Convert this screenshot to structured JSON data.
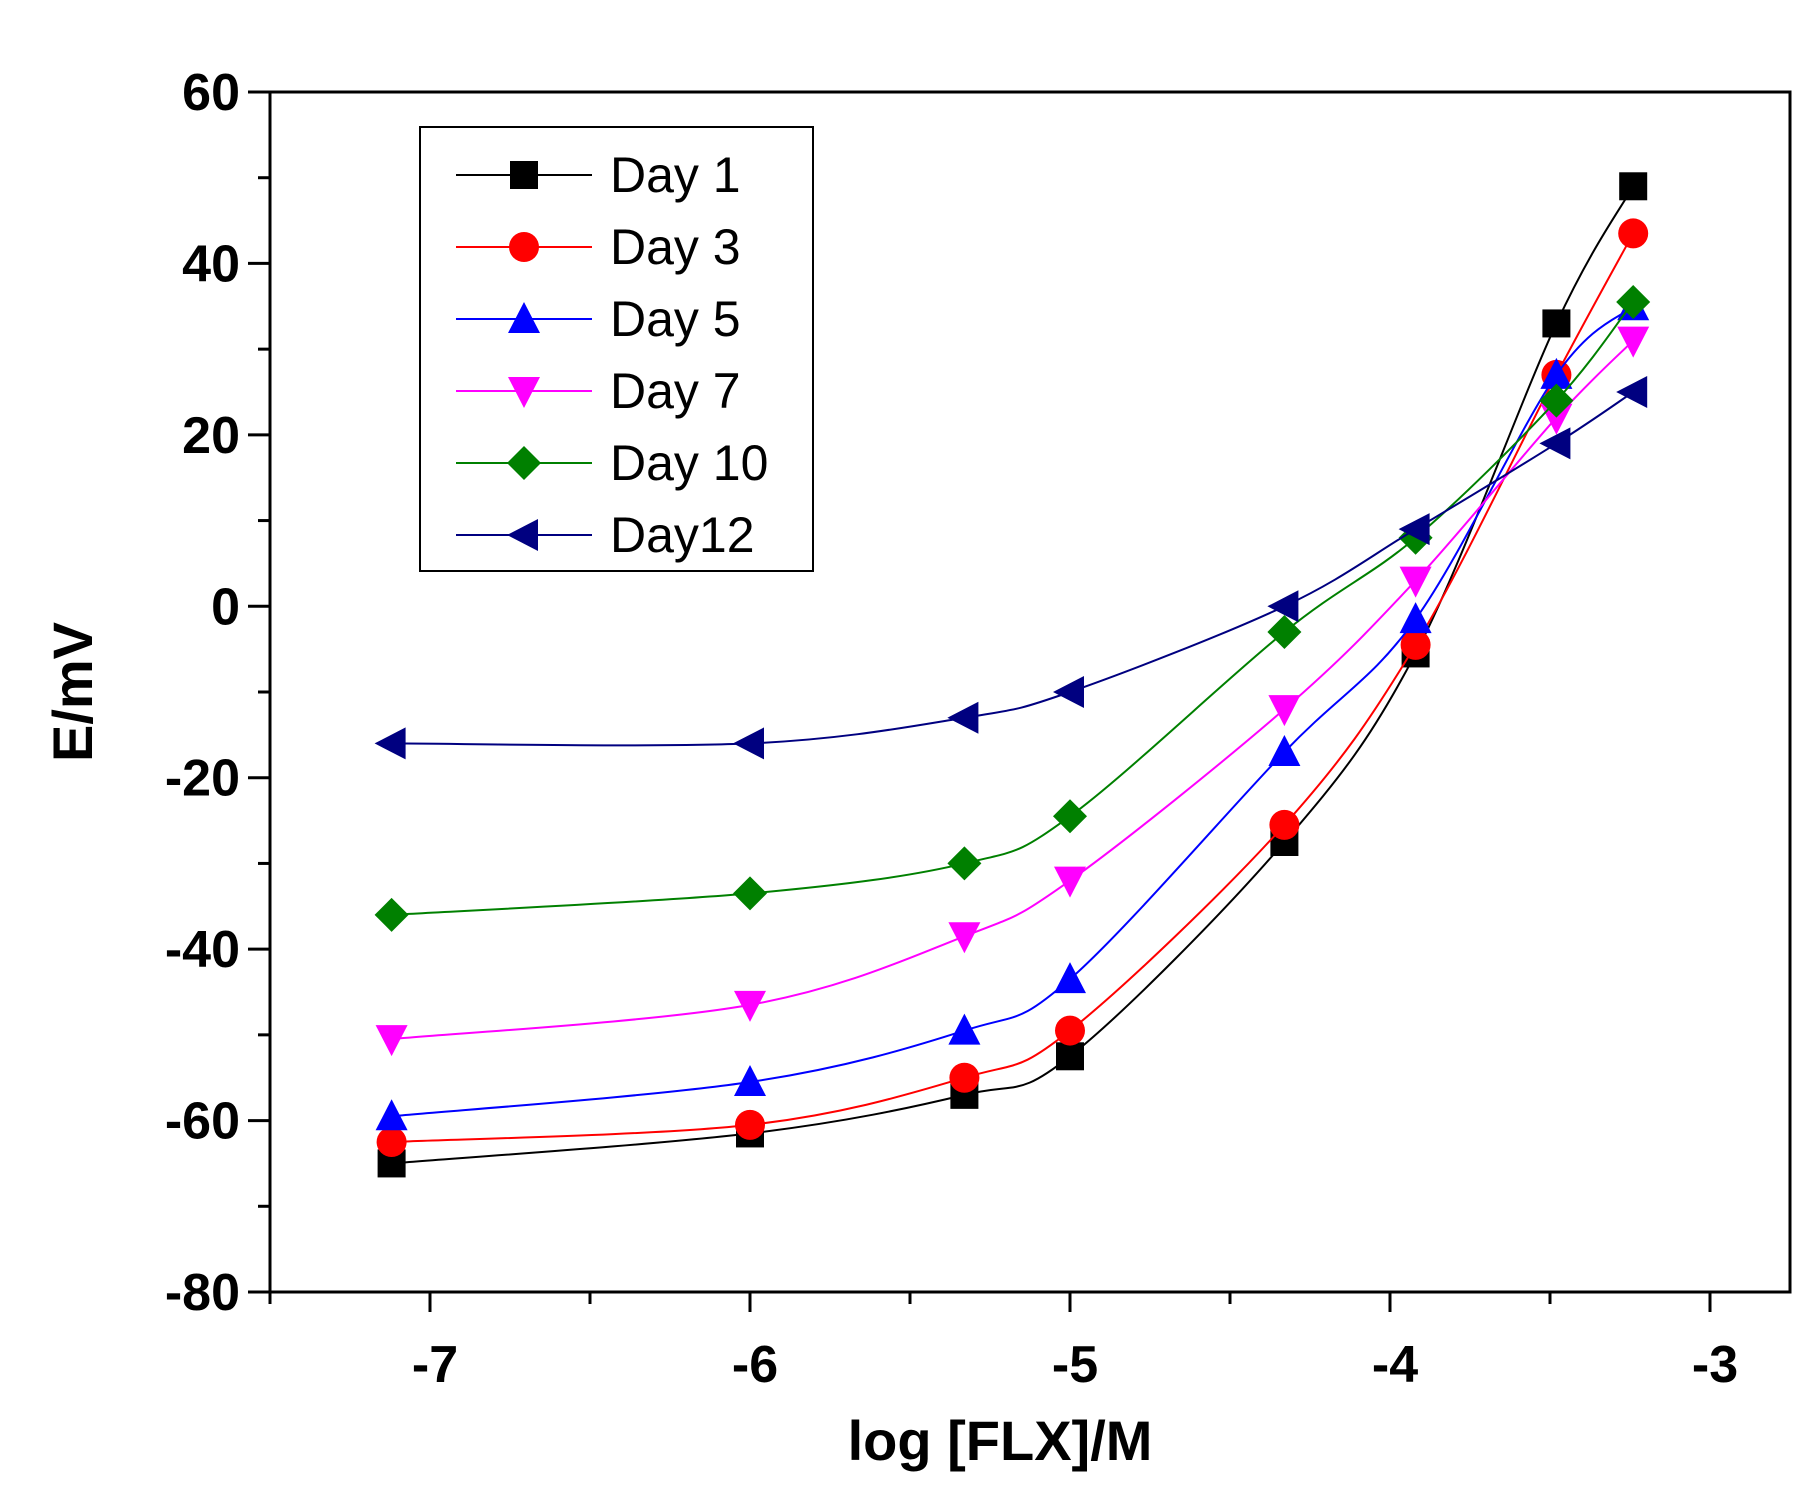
{
  "chart_data": {
    "type": "line",
    "title": "",
    "xlabel": "log [FLX]/M",
    "ylabel": "E/mV",
    "xlim": [
      -7.5,
      -2.75
    ],
    "ylim": [
      -80,
      60
    ],
    "xticks": [
      -7,
      -6,
      -5,
      -4,
      -3
    ],
    "xtick_labels": [
      "-7",
      "-6",
      "-5",
      "-4",
      "-3"
    ],
    "yticks": [
      -80,
      -60,
      -40,
      -20,
      0,
      20,
      40,
      60
    ],
    "ytick_labels": [
      "-80",
      "-60",
      "-40",
      "-20",
      "0",
      "20",
      "40",
      "60"
    ],
    "grid": false,
    "legend_position": "top-left",
    "x": [
      -7.12,
      -6.0,
      -5.33,
      -5.0,
      -4.33,
      -3.92,
      -3.48,
      -3.24
    ],
    "series": [
      {
        "name": "Day 1",
        "color": "#000000",
        "marker": "square",
        "values": [
          -65,
          -61.5,
          -57,
          -52.5,
          -27.5,
          -5.5,
          33,
          49
        ]
      },
      {
        "name": "Day 3",
        "color": "#ff0000",
        "marker": "circle",
        "values": [
          -62.5,
          -60.5,
          -55,
          -49.5,
          -25.5,
          -4.5,
          27,
          43.5
        ]
      },
      {
        "name": "Day 5",
        "color": "#0000ff",
        "marker": "triangle-up",
        "values": [
          -59.5,
          -55.5,
          -49.5,
          -43.5,
          -17,
          -1.5,
          27,
          35
        ]
      },
      {
        "name": "Day 7",
        "color": "#ff00ff",
        "marker": "triangle-down",
        "values": [
          -50.5,
          -46.5,
          -38.5,
          -32,
          -12,
          3,
          22,
          31
        ]
      },
      {
        "name": "Day 10",
        "color": "#008000",
        "marker": "diamond",
        "values": [
          -36,
          -33.5,
          -30,
          -24.5,
          -3,
          8,
          24,
          35.5
        ]
      },
      {
        "name": "Day12",
        "color": "#000080",
        "marker": "triangle-left",
        "values": [
          -16,
          -16,
          -13,
          -10,
          0,
          9,
          19,
          25
        ]
      }
    ]
  }
}
